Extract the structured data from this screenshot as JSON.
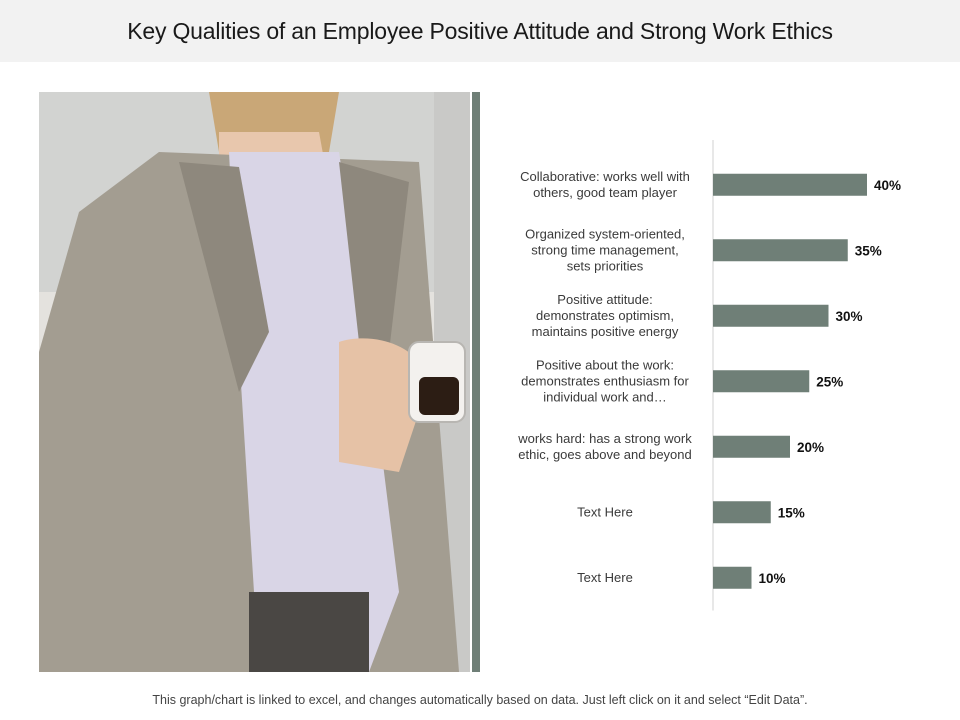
{
  "header": {
    "title": "Key Qualities of an Employee Positive Attitude and Strong Work Ethics"
  },
  "photo": {
    "description_icon": "photo-placeholder-icon"
  },
  "colors": {
    "bar": "#6f7f77",
    "accent_bar": "#6f7f77",
    "title_bg": "#f2f2f2"
  },
  "chart_data": {
    "type": "bar",
    "orientation": "horizontal",
    "categories": [
      [
        "Collaborative: works well with",
        "others, good team player"
      ],
      [
        "Organized system-oriented,",
        "strong time management,",
        "sets priorities"
      ],
      [
        "Positive attitude:",
        "demonstrates optimism,",
        "maintains positive energy"
      ],
      [
        "Positive about the work:",
        "demonstrates enthusiasm for",
        "individual work and…"
      ],
      [
        "works hard: has a strong work",
        "ethic, goes above and beyond"
      ],
      [
        "Text Here"
      ],
      [
        "Text Here"
      ]
    ],
    "values": [
      40,
      35,
      30,
      25,
      20,
      15,
      10
    ],
    "data_labels": [
      "40%",
      "35%",
      "30%",
      "25%",
      "20%",
      "15%",
      "10%"
    ],
    "value_format": "percent",
    "xlim": [
      0,
      40
    ],
    "title": "",
    "xlabel": "",
    "ylabel": "",
    "grid": false,
    "legend": "none"
  },
  "footer": {
    "note": "This graph/chart is linked to excel, and changes automatically based on data. Just left click on it and select “Edit Data”."
  }
}
